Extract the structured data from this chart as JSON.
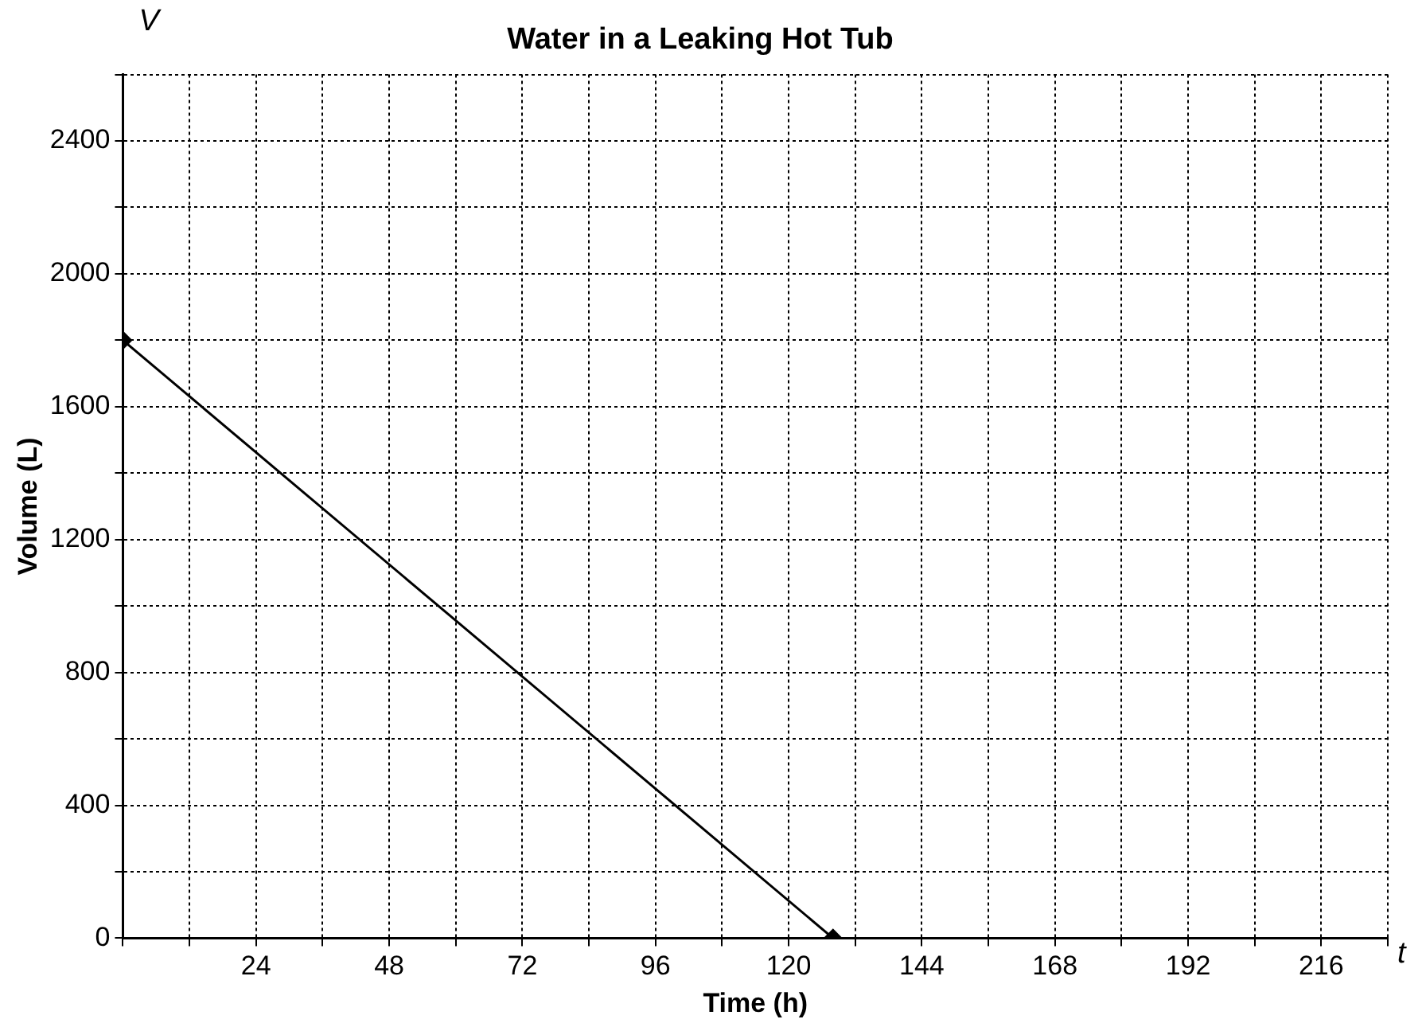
{
  "chart_data": {
    "type": "line",
    "title": "Water in a Leaking Hot Tub",
    "xlabel": "Time (h)",
    "ylabel": "Volume (L)",
    "annotations": [
      "V",
      "t"
    ],
    "x": [
      0,
      128
    ],
    "series": [
      {
        "color": "#000000",
        "values": [
          1800,
          0
        ]
      }
    ],
    "xlim": [
      0,
      228
    ],
    "xticks": [
      {
        "value": 0,
        "label": null
      },
      {
        "value": 12,
        "label": null
      },
      24,
      {
        "value": 36,
        "label": null
      },
      48,
      {
        "value": 60,
        "label": null
      },
      72,
      {
        "value": 84,
        "label": null
      },
      96,
      {
        "value": 108,
        "label": null
      },
      120,
      {
        "value": 132,
        "label": null
      },
      144,
      {
        "value": 156,
        "label": null
      },
      168,
      {
        "value": 180,
        "label": null
      },
      192,
      {
        "value": 204,
        "label": null
      },
      216,
      {
        "value": 228,
        "label": null
      }
    ],
    "ylim": [
      0,
      2600
    ],
    "yticks": [
      0,
      {
        "value": 200,
        "label": null
      },
      400,
      {
        "value": 600,
        "label": null
      },
      800,
      {
        "value": 1000,
        "label": null
      },
      1200,
      {
        "value": 1400,
        "label": null
      },
      1600,
      {
        "value": 1800,
        "label": null
      },
      2000,
      {
        "value": 2200,
        "label": null
      },
      2400,
      {
        "value": 2600,
        "label": null
      }
    ],
    "grid": true,
    "marker": "diamond",
    "line_style": "solid",
    "legend": false
  }
}
